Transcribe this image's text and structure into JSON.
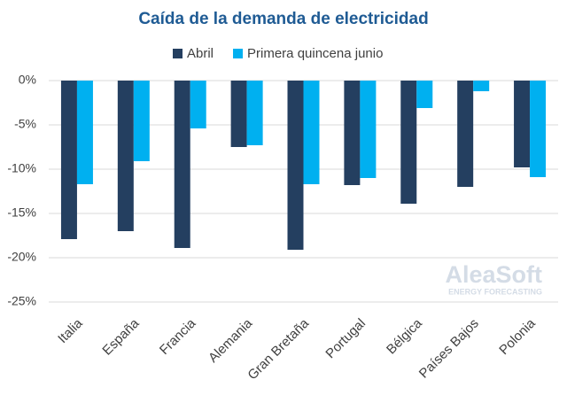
{
  "chart_data": {
    "type": "bar",
    "title": "Caída de la demanda de electricidad",
    "categories": [
      "Italia",
      "España",
      "Francia",
      "Alemania",
      "Gran Bretaña",
      "Portugal",
      "Bélgica",
      "Países Bajos",
      "Polonia"
    ],
    "series": [
      {
        "name": "Abril",
        "color": "#243f60",
        "values": [
          -17.9,
          -17.0,
          -18.9,
          -7.5,
          -19.1,
          -11.8,
          -13.9,
          -12.0,
          -9.8
        ]
      },
      {
        "name": "Primera quincena junio",
        "color": "#00b0f0",
        "values": [
          -11.7,
          -9.1,
          -5.4,
          -7.3,
          -11.7,
          -11.0,
          -3.1,
          -1.2,
          -10.9
        ]
      }
    ],
    "ylim": [
      -25,
      0
    ],
    "yticks": [
      {
        "value": 0,
        "label": "0%"
      },
      {
        "value": -5,
        "label": "-5%"
      },
      {
        "value": -10,
        "label": "-10%"
      },
      {
        "value": -15,
        "label": "-15%"
      },
      {
        "value": -20,
        "label": "-20%"
      },
      {
        "value": -25,
        "label": "-25%"
      }
    ],
    "grid": true,
    "legend": "top",
    "watermark": {
      "name": "AleaSoft",
      "tagline": "ENERGY FORECASTING"
    }
  }
}
